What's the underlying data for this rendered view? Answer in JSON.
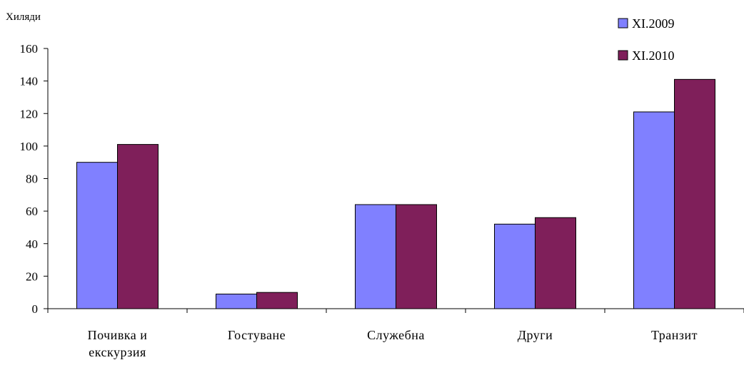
{
  "chart_data": {
    "type": "bar",
    "ylabel": "Хиляди",
    "ylim": [
      0,
      160
    ],
    "ytick_step": 20,
    "yticks": [
      "0",
      "20",
      "40",
      "60",
      "80",
      "100",
      "120",
      "140",
      "160"
    ],
    "grid": false,
    "legend_position": "top-right",
    "categories": [
      [
        "Почивка и",
        "екскурзия"
      ],
      [
        "Гостуване"
      ],
      [
        "Служебна"
      ],
      [
        "Други"
      ],
      [
        "Транзит"
      ]
    ],
    "series": [
      {
        "name": "XI.2009",
        "color": "#8080ff",
        "values": [
          90,
          9,
          64,
          52,
          121
        ]
      },
      {
        "name": "XI.2010",
        "color": "#7f1f5a",
        "values": [
          101,
          10,
          64,
          56,
          141
        ]
      }
    ]
  }
}
